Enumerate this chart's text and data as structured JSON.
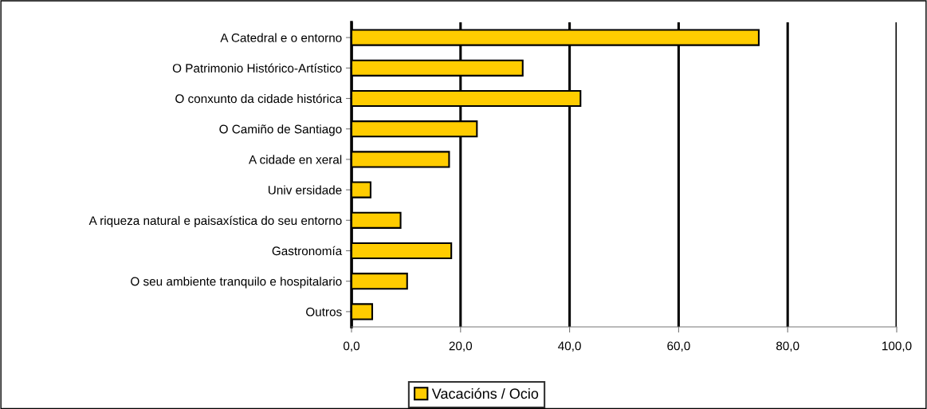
{
  "chart_data": {
    "type": "bar",
    "orientation": "horizontal",
    "categories": [
      "A Catedral e o entorno",
      "O Patrimonio Histórico-Artístico",
      "O conxunto da cidade histórica",
      "O Camiño de Santiago",
      "A cidade en xeral",
      "Univ ersidade",
      "A riqueza natural e paisaxística do seu entorno",
      "Gastronomía",
      "O seu ambiente tranquilo e hospitalario",
      "Outros"
    ],
    "series": [
      {
        "name": "Vacacións / Ocio",
        "color": "#ffcc00",
        "values": [
          74.7,
          31.4,
          42.0,
          23.0,
          17.9,
          3.5,
          9.0,
          18.3,
          10.2,
          3.8
        ]
      }
    ],
    "xlim": [
      0,
      100
    ],
    "xticks": [
      {
        "value": 0,
        "label": "0,0"
      },
      {
        "value": 20,
        "label": "20,0"
      },
      {
        "value": 40,
        "label": "40,0"
      },
      {
        "value": 60,
        "label": "60,0"
      },
      {
        "value": 80,
        "label": "80,0"
      },
      {
        "value": 100,
        "label": "100,0"
      }
    ],
    "grid": "x",
    "legend": "bottom"
  }
}
